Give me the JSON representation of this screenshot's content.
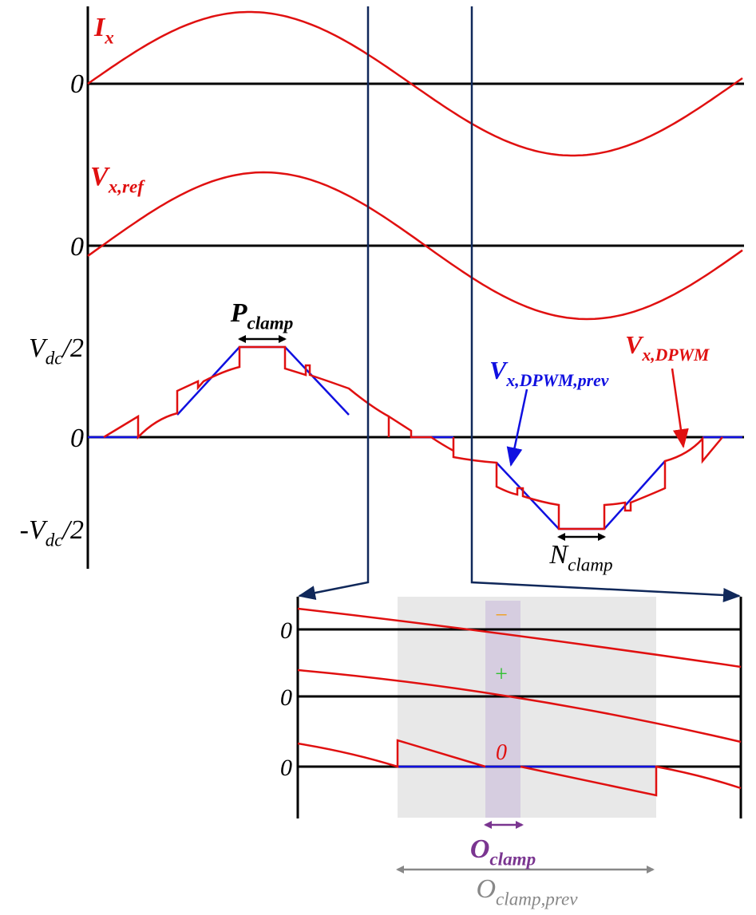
{
  "signals": {
    "current": {
      "symbol": "I",
      "subscript": "x"
    },
    "reference": {
      "symbol": "V",
      "subscript": "x,ref"
    },
    "dpwm": {
      "symbol": "V",
      "subscript": "x,DPWM"
    },
    "dpwm_prev": {
      "symbol": "V",
      "subscript": "x,DPWM,prev"
    }
  },
  "axis_labels": {
    "zeros": [
      "0",
      "0",
      "0"
    ],
    "positive": {
      "symbol": "V",
      "subscript": "dc",
      "suffix": "/2"
    },
    "negative": {
      "prefix": "-",
      "symbol": "V",
      "subscript": "dc",
      "suffix": "/2"
    }
  },
  "intervals": {
    "p_clamp": {
      "symbol": "P",
      "subscript": "clamp"
    },
    "n_clamp": {
      "symbol": "N",
      "subscript": "clamp"
    },
    "o_clamp": {
      "symbol": "O",
      "subscript": "clamp"
    },
    "o_clamp_prev": {
      "symbol": "O",
      "subscript": "clamp,prev"
    }
  },
  "zoom": {
    "zeros": [
      "0",
      "0",
      "0"
    ],
    "signs": [
      "−",
      "+",
      "0"
    ]
  }
}
